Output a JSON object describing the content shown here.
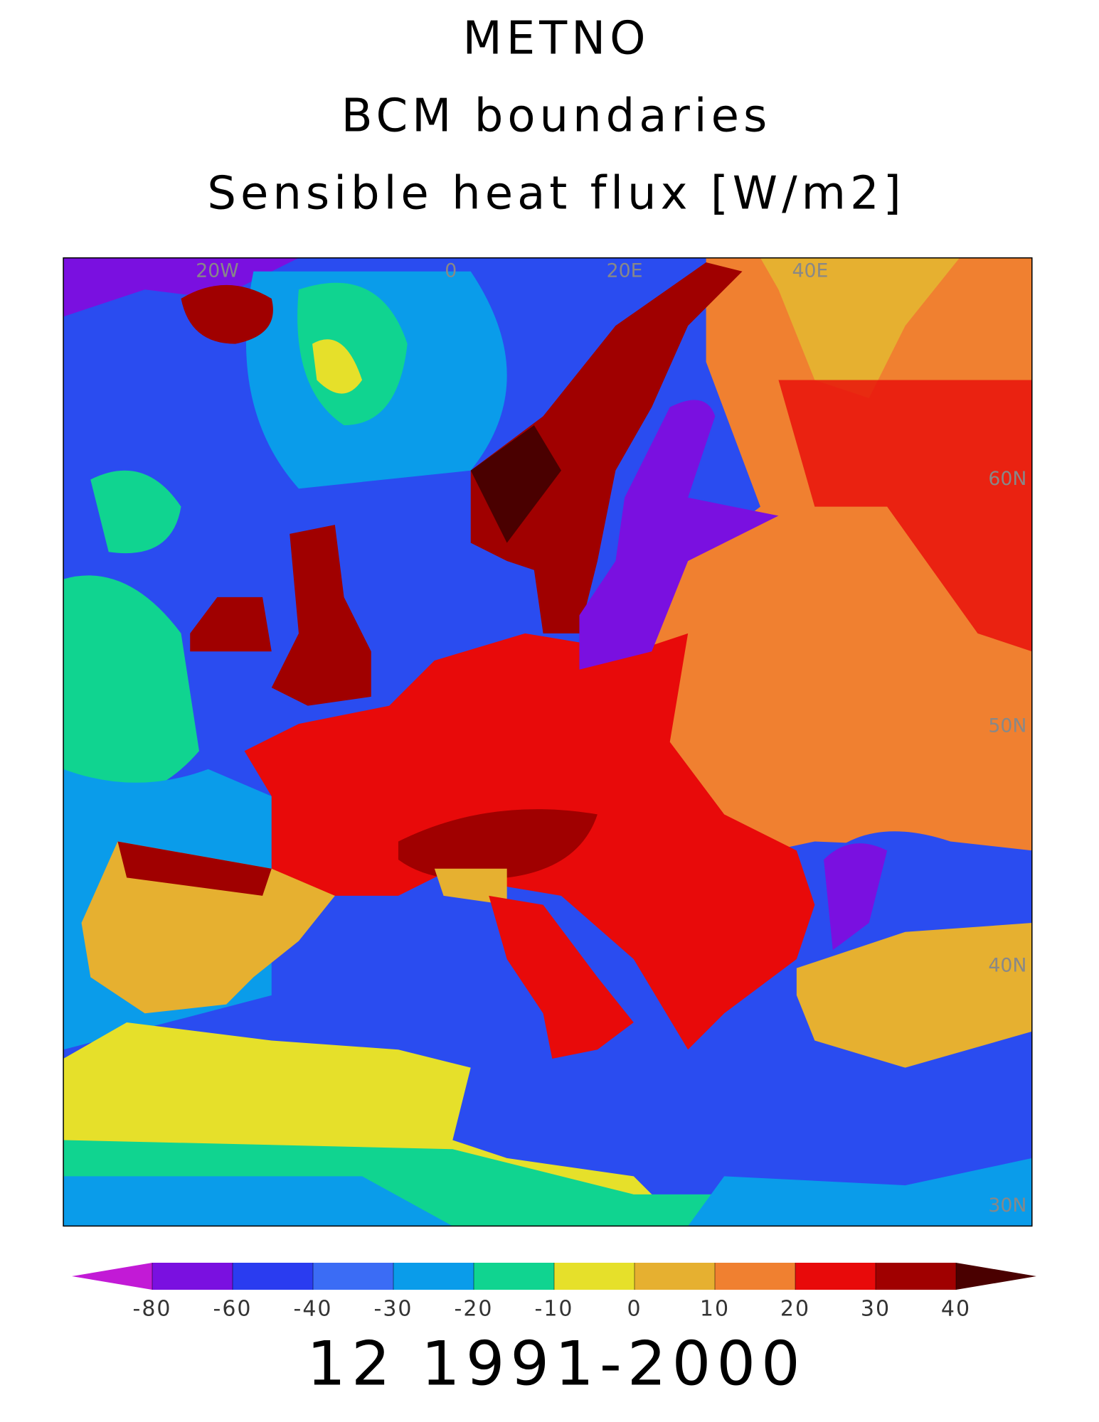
{
  "header": {
    "lines": [
      "METNO",
      "BCM boundaries",
      "Sensible heat flux [W/m2]"
    ]
  },
  "map": {
    "lon_labels": [
      "20W",
      "0",
      "20E",
      "40E"
    ],
    "lat_labels": [
      "60N",
      "50N",
      "40N",
      "30N"
    ]
  },
  "colorbar": {
    "ticks": [
      -80,
      -60,
      -40,
      -30,
      -20,
      -10,
      0,
      10,
      20,
      30,
      40
    ],
    "colors": [
      "#c21ad6",
      "#7a10e0",
      "#2a3cf0",
      "#3b6cf5",
      "#0a9cea",
      "#10d490",
      "#e6e02a",
      "#e6b030",
      "#f08030",
      "#e80a0a",
      "#a00000",
      "#4a0000"
    ]
  },
  "footer": "12 1991-2000"
}
